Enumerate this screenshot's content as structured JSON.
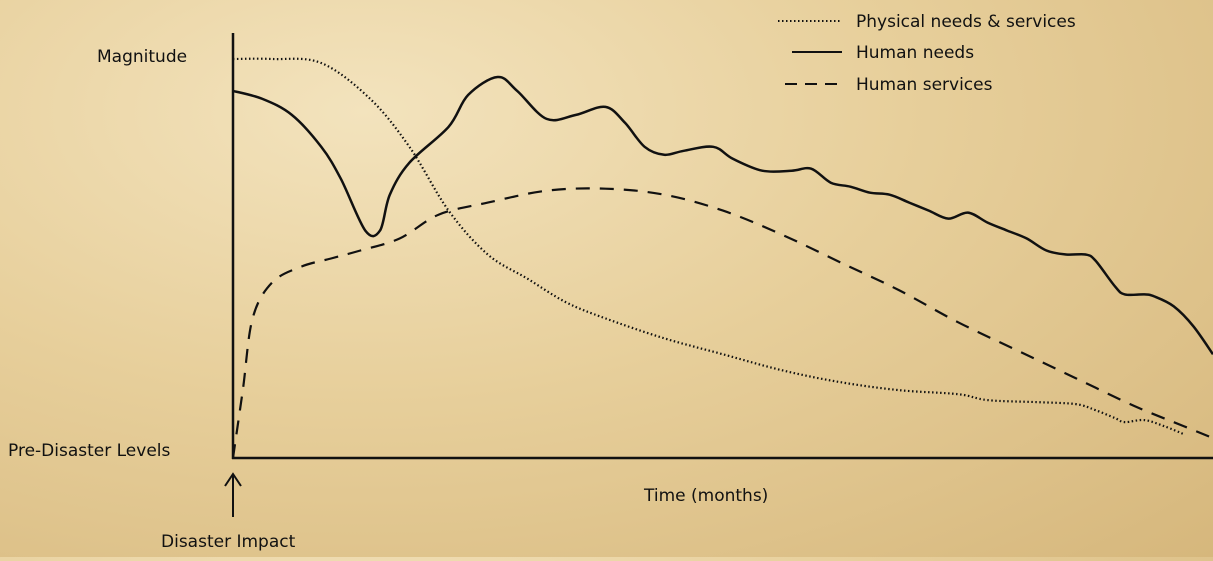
{
  "chart_data": {
    "type": "line",
    "ylabel": "Magnitude",
    "xlabel": "Time (months)",
    "y_baseline_label": "Pre-Disaster Levels",
    "annotation": "Disaster Impact",
    "legend_position": "top-right",
    "grid": false,
    "xlim": [
      0,
      100
    ],
    "ylim": [
      0,
      100
    ],
    "colors": {
      "line": "#111111",
      "background": "#e9d3a2"
    },
    "series": [
      {
        "name": "Physical needs & services",
        "style": "dotted",
        "points": [
          [
            0,
            100
          ],
          [
            4,
            100
          ],
          [
            9,
            99
          ],
          [
            14,
            90
          ],
          [
            18,
            78
          ],
          [
            22,
            62
          ],
          [
            26,
            51
          ],
          [
            30,
            45
          ],
          [
            34,
            39
          ],
          [
            38,
            35
          ],
          [
            44,
            30
          ],
          [
            50,
            26
          ],
          [
            56,
            22
          ],
          [
            62,
            19
          ],
          [
            68,
            17
          ],
          [
            74,
            16
          ],
          [
            77,
            14.5
          ],
          [
            82,
            14
          ],
          [
            86,
            13.5
          ],
          [
            88,
            12
          ],
          [
            90,
            10
          ],
          [
            91,
            9
          ],
          [
            93,
            9.5
          ],
          [
            95,
            8
          ],
          [
            97,
            6
          ]
        ]
      },
      {
        "name": "Human needs",
        "style": "solid",
        "points": [
          [
            0,
            92
          ],
          [
            3,
            90
          ],
          [
            6,
            86
          ],
          [
            9,
            78
          ],
          [
            11,
            70
          ],
          [
            13.5,
            57
          ],
          [
            15,
            57
          ],
          [
            16,
            66
          ],
          [
            18,
            74
          ],
          [
            22,
            83
          ],
          [
            24,
            91
          ],
          [
            27,
            95.5
          ],
          [
            29,
            92
          ],
          [
            32,
            85
          ],
          [
            35,
            86
          ],
          [
            38,
            88
          ],
          [
            40,
            84
          ],
          [
            42,
            78
          ],
          [
            44,
            76
          ],
          [
            46,
            77
          ],
          [
            49,
            78
          ],
          [
            51,
            75
          ],
          [
            54,
            72
          ],
          [
            57,
            72
          ],
          [
            59,
            72.5
          ],
          [
            61,
            69
          ],
          [
            63,
            68
          ],
          [
            65,
            66.5
          ],
          [
            67,
            66
          ],
          [
            69,
            64
          ],
          [
            71,
            62
          ],
          [
            73,
            60
          ],
          [
            75,
            61.5
          ],
          [
            77,
            59
          ],
          [
            79,
            57
          ],
          [
            81,
            55
          ],
          [
            83,
            52
          ],
          [
            85,
            51
          ],
          [
            87,
            51
          ],
          [
            88,
            49.5
          ],
          [
            90,
            43
          ],
          [
            91,
            41
          ],
          [
            93,
            41
          ],
          [
            94,
            40.5
          ],
          [
            96,
            38
          ],
          [
            98,
            33
          ],
          [
            100,
            26
          ]
        ]
      },
      {
        "name": "Human services",
        "style": "dashed",
        "points": [
          [
            0,
            0
          ],
          [
            1,
            17
          ],
          [
            2,
            35
          ],
          [
            4,
            44
          ],
          [
            7,
            48
          ],
          [
            10,
            50
          ],
          [
            13,
            52
          ],
          [
            17,
            55
          ],
          [
            21,
            61
          ],
          [
            26,
            64
          ],
          [
            32,
            67
          ],
          [
            38,
            67.5
          ],
          [
            44,
            66
          ],
          [
            50,
            62
          ],
          [
            56,
            56
          ],
          [
            62,
            49
          ],
          [
            68,
            42
          ],
          [
            74,
            34
          ],
          [
            80,
            27
          ],
          [
            86,
            20
          ],
          [
            92,
            13
          ],
          [
            97,
            8
          ],
          [
            100,
            5
          ]
        ]
      }
    ]
  }
}
